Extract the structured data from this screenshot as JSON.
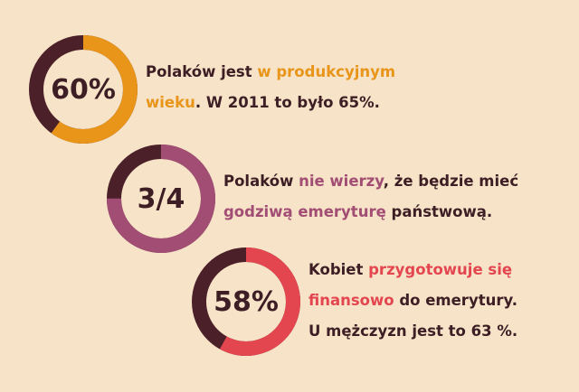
{
  "stats": [
    {
      "value": "60%",
      "fraction": 0.6,
      "color": "#e8951a",
      "line1": [
        "Polaków jest ",
        "w produkcyjnym"
      ],
      "line2": [
        "wieku",
        ". W 2011 to było  65%."
      ]
    },
    {
      "value": "3/4",
      "fraction": 0.75,
      "color": "#a24d74",
      "line1": [
        "Polaków ",
        "nie wierzy",
        ", że będzie mieć"
      ],
      "line2": [
        "godziwą emeryturę",
        " państwową."
      ]
    },
    {
      "value": "58%",
      "fraction": 0.58,
      "color": "#e4464f",
      "line1": [
        "Kobiet ",
        "przygotowuje się"
      ],
      "line2": [
        "finansowo",
        " do emerytury."
      ],
      "line3": "U mężczyzn jest to 63 %."
    }
  ],
  "colors": {
    "background": "#f6e3c8",
    "dark": "#3d1e24",
    "track": "#4b2029"
  }
}
